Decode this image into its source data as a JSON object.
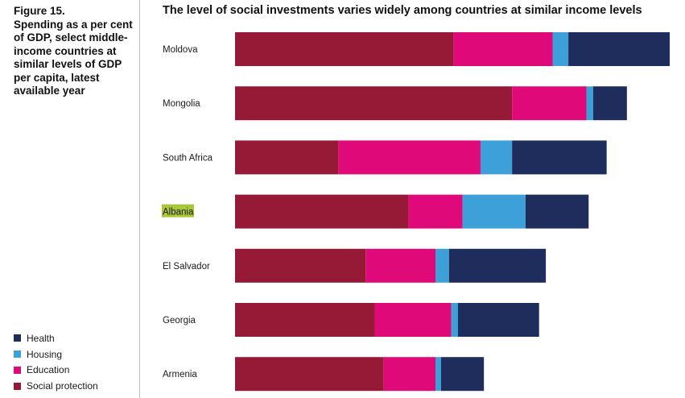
{
  "figure": {
    "label": "Figure 15.\nSpending as a per cent of GDP, select middle-income countries at similar levels of GDP per capita, latest available year"
  },
  "legend": {
    "items": [
      {
        "label": "Health",
        "color": "#1f2d5c"
      },
      {
        "label": "Housing",
        "color": "#3ea0d8"
      },
      {
        "label": "Education",
        "color": "#e0097a"
      },
      {
        "label": "Social protection",
        "color": "#961a35"
      }
    ]
  },
  "chart_data": {
    "type": "bar",
    "orientation": "horizontal",
    "stacked": true,
    "title": "The level of social investments varies widely among countries at similar income levels",
    "xlabel": "",
    "ylabel": "",
    "xlim": [
      0,
      19.3
    ],
    "grid": false,
    "legend_position": "bottom-left",
    "highlighted_category": "Albania",
    "categories": [
      "Moldova",
      "Mongolia",
      "South Africa",
      "Albania",
      "El Salvador",
      "Georgia",
      "Armenia"
    ],
    "series": [
      {
        "name": "Social protection",
        "color": "#961a35",
        "values": [
          9.7,
          12.3,
          4.6,
          7.7,
          5.8,
          6.2,
          6.6
        ]
      },
      {
        "name": "Education",
        "color": "#e0097a",
        "values": [
          4.4,
          3.3,
          6.3,
          2.4,
          3.1,
          3.4,
          2.3
        ]
      },
      {
        "name": "Housing",
        "color": "#3ea0d8",
        "values": [
          0.7,
          0.3,
          1.4,
          2.8,
          0.6,
          0.3,
          0.25
        ]
      },
      {
        "name": "Health",
        "color": "#1f2d5c",
        "values": [
          4.5,
          1.5,
          4.2,
          2.8,
          4.3,
          3.6,
          1.9
        ]
      }
    ]
  }
}
